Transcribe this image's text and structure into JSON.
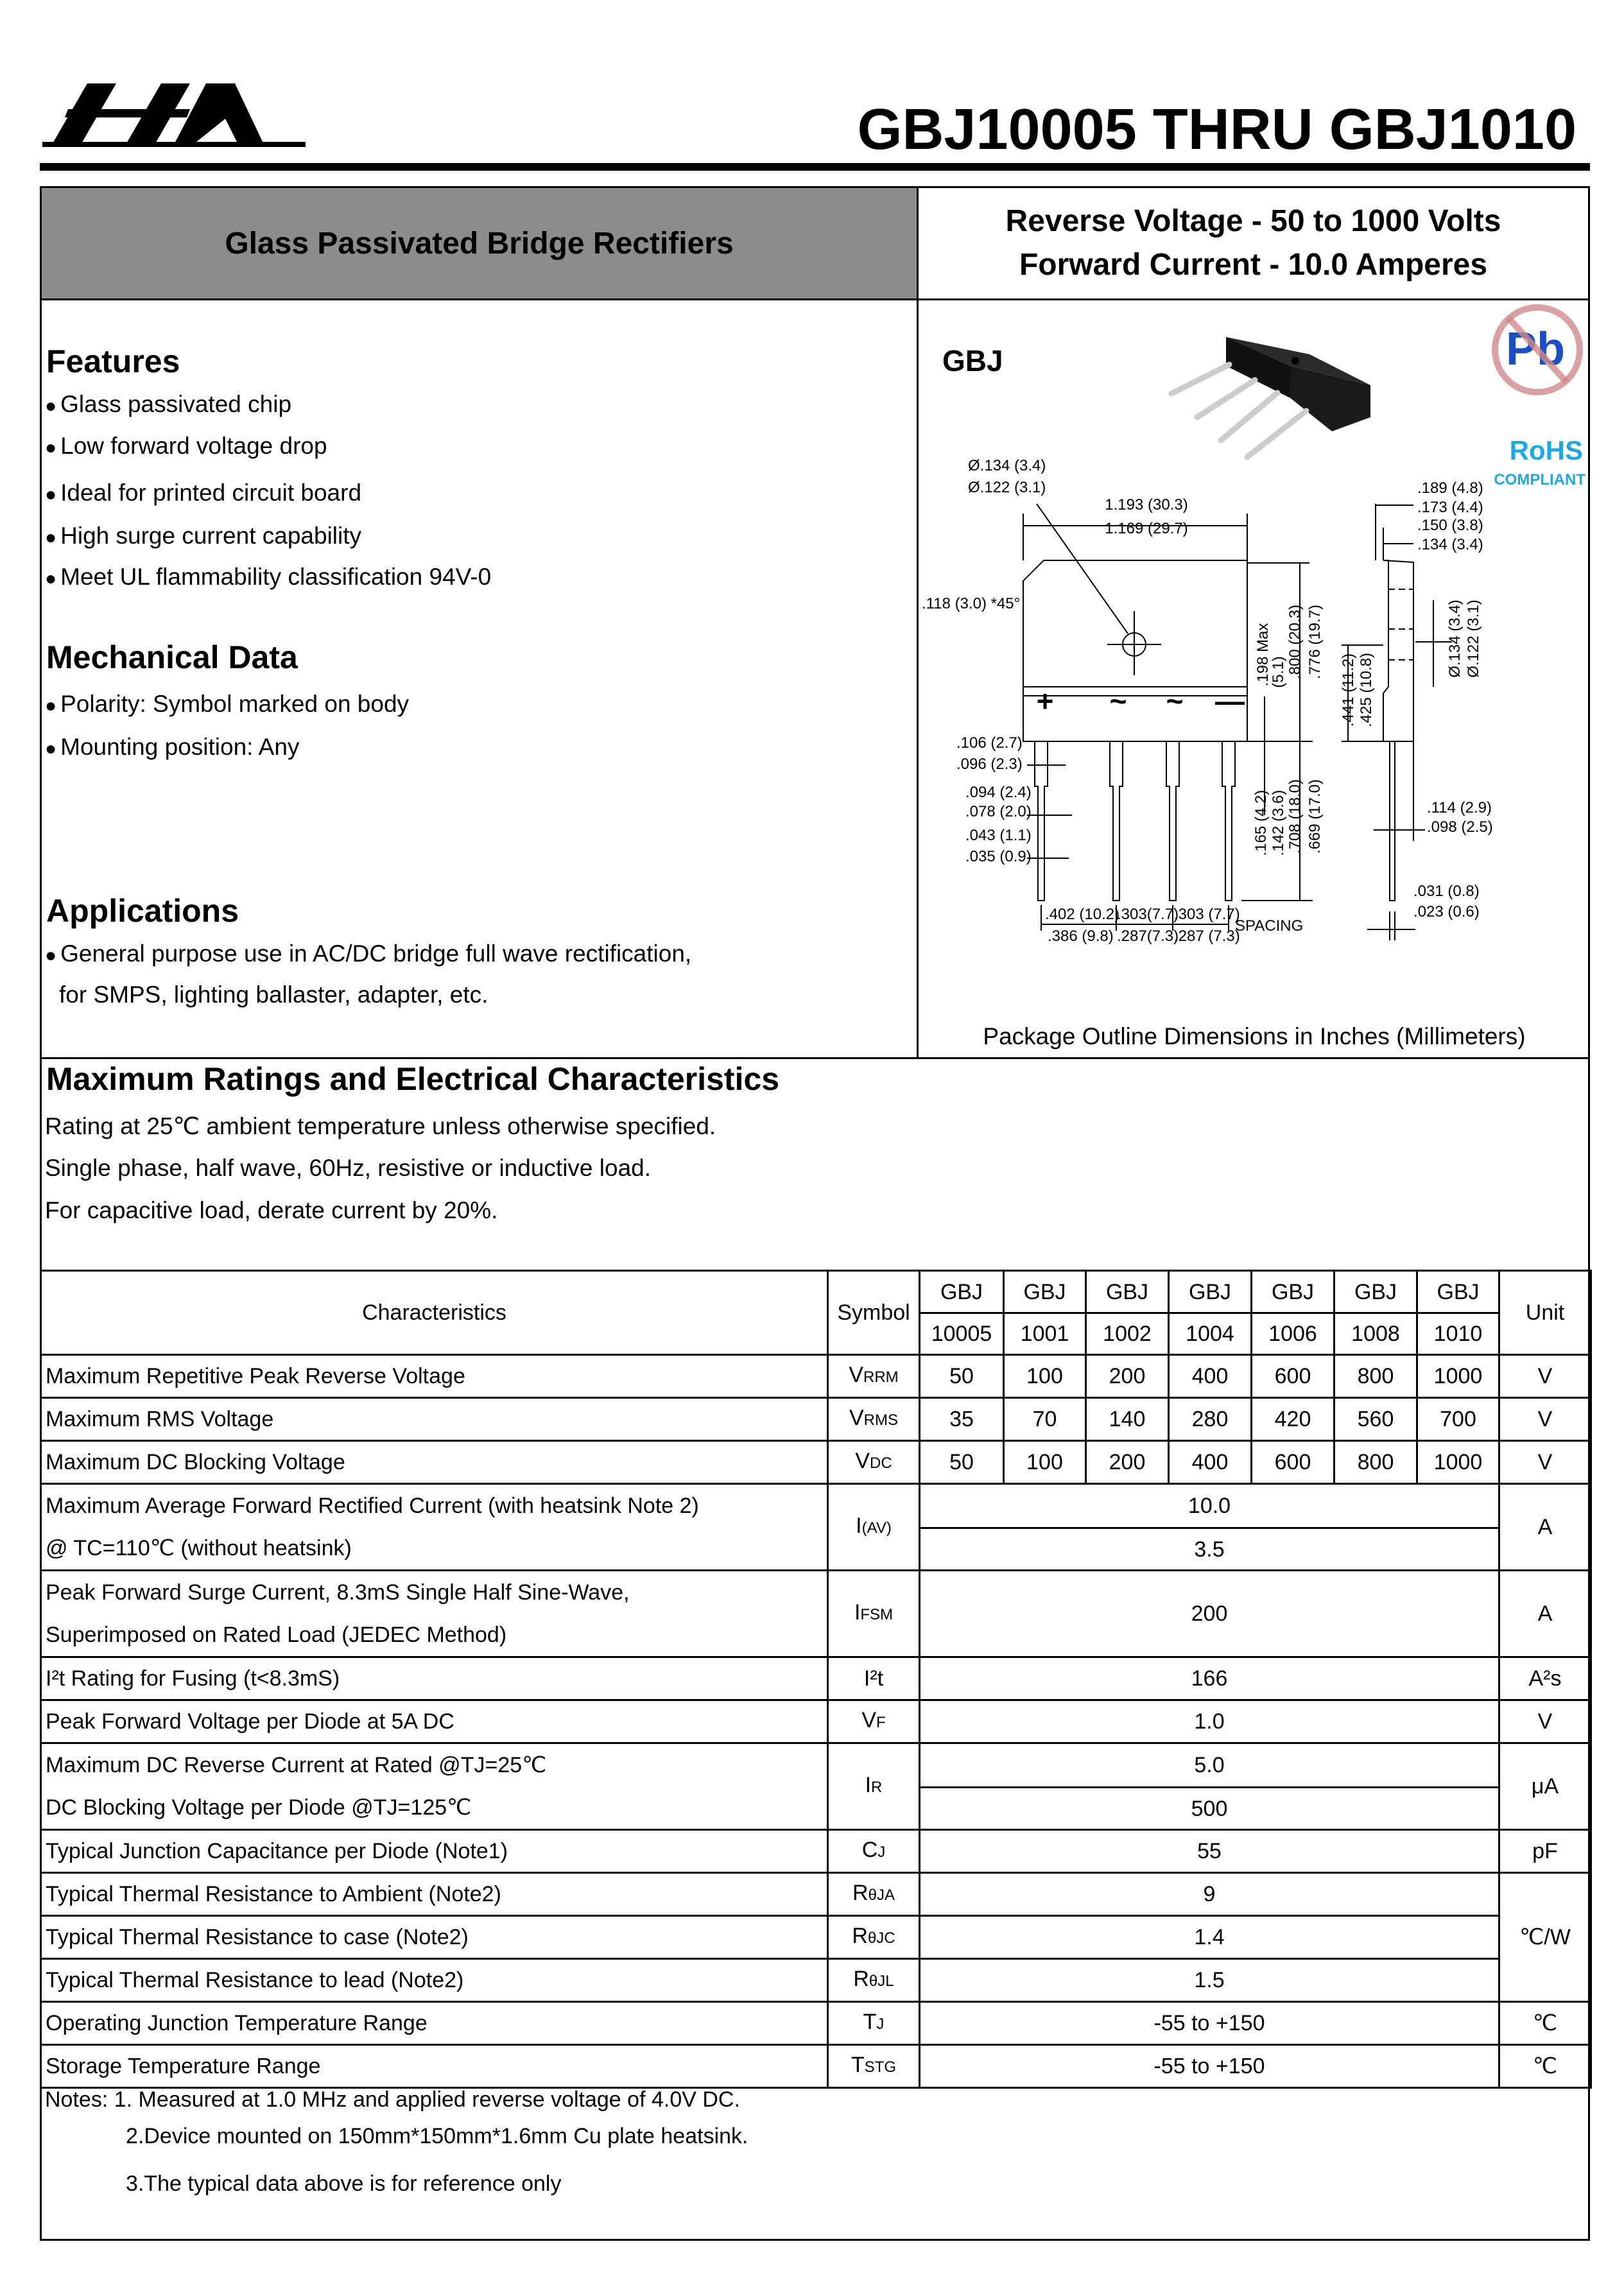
{
  "logo": {
    "text": "HA"
  },
  "header": {
    "title": "GBJ10005 THRU GBJ1010"
  },
  "banner": {
    "left": "Glass Passivated Bridge Rectifiers",
    "right": [
      "Reverse Voltage  -  50 to 1000 Volts",
      "Forward Current -  10.0 Amperes"
    ]
  },
  "features": {
    "heading": "Features",
    "items": [
      "Glass passivated chip",
      "Low forward voltage drop",
      "Ideal for printed circuit board",
      "High surge current capability",
      "Meet UL flammability classification 94V-0"
    ]
  },
  "mechanical": {
    "heading": "Mechanical Data",
    "items": [
      "Polarity: Symbol marked on body",
      "Mounting position: Any"
    ]
  },
  "applications": {
    "heading": "Applications",
    "items": [
      "General purpose use in AC/DC bridge full wave rectification,"
    ],
    "continuation": "for SMPS, lighting ballaster, adapter, etc."
  },
  "package": {
    "name": "GBJ",
    "rohs": "RoHS",
    "compliant": "COMPLIANT",
    "pb": "Pb",
    "caption": "Package Outline Dimensions in Inches (Millimeters)",
    "pin_marks": [
      "+",
      "~",
      "~",
      "—"
    ],
    "labels": [
      "Ø.134 (3.4)",
      "Ø.122 (3.1)",
      "1.193 (30.3)",
      "1.169 (29.7)",
      ".118 (3.0) *45°",
      ".198 Max",
      "(5.1)",
      ".800 (20.3)",
      ".776 (19.7)",
      ".189 (4.8)",
      ".173 (4.4)",
      ".150 (3.8)",
      ".134 (3.4)",
      "Ø.134 (3.4)",
      "Ø.122 (3.1)",
      ".441 (11.2)",
      ".425 (10.8)",
      ".106 (2.7)",
      ".096 (2.3)",
      ".094 (2.4)",
      ".078 (2.0)",
      ".043 (1.1)",
      ".035 (0.9)",
      ".165 (4.2)",
      ".142 (3.6)",
      ".708 (18.0)",
      ".669 (17.0)",
      ".114 (2.9)",
      ".098 (2.5)",
      ".031 (0.8)",
      ".023 (0.6)",
      ".402 (10.2)",
      ".386 (9.8)",
      ".303(7.7)",
      ".287(7.3)",
      ".303 (7.7)",
      ".287 (7.3)",
      "SPACING"
    ]
  },
  "ratings": {
    "heading": "Maximum Ratings and Electrical Characteristics",
    "lines": [
      "Rating at 25℃ ambient temperature unless otherwise specified.",
      "Single phase, half wave, 60Hz, resistive or inductive load.",
      "For capacitive load, derate current by 20%."
    ]
  },
  "table": {
    "head": {
      "characteristics": "Characteristics",
      "symbol": "Symbol",
      "unit": "Unit",
      "series": [
        "GBJ",
        "GBJ",
        "GBJ",
        "GBJ",
        "GBJ",
        "GBJ",
        "GBJ"
      ],
      "models": [
        "10005",
        "1001",
        "1002",
        "1004",
        "1006",
        "1008",
        "1010"
      ]
    },
    "rows": [
      {
        "char": [
          "Maximum Repetitive Peak Reverse Voltage"
        ],
        "sym": [
          "V",
          "RRM"
        ],
        "values": [
          "50",
          "100",
          "200",
          "400",
          "600",
          "800",
          "1000"
        ],
        "unit": "V"
      },
      {
        "char": [
          "Maximum RMS Voltage"
        ],
        "sym": [
          "V",
          "RMS"
        ],
        "values": [
          "35",
          "70",
          "140",
          "280",
          "420",
          "560",
          "700"
        ],
        "unit": "V"
      },
      {
        "char": [
          "Maximum DC Blocking Voltage"
        ],
        "sym": [
          "V",
          "DC"
        ],
        "values": [
          "50",
          "100",
          "200",
          "400",
          "600",
          "800",
          "1000"
        ],
        "unit": "V"
      },
      {
        "char": [
          "Maximum Average Forward Rectified Current   (with heatsink Note 2)",
          "@ TC=110℃ (without heatsink)"
        ],
        "sym": [
          "I",
          "(AV)"
        ],
        "split": [
          "10.0",
          "3.5"
        ],
        "unit": "A"
      },
      {
        "char": [
          "Peak Forward Surge Current, 8.3mS Single Half Sine-Wave,",
          "Superimposed on Rated Load (JEDEC Method)"
        ],
        "sym": [
          "I",
          "FSM"
        ],
        "value": "200",
        "unit": "A"
      },
      {
        "char": [
          "I²t Rating for Fusing (t<8.3mS)"
        ],
        "sym": [
          "I²t",
          ""
        ],
        "value": "166",
        "unit": "A²s"
      },
      {
        "char": [
          "Peak Forward Voltage per Diode at 5A DC"
        ],
        "sym": [
          "V",
          "F"
        ],
        "value": "1.0",
        "unit": "V"
      },
      {
        "char": [
          "Maximum DC Reverse Current at Rated @TJ=25℃",
          "DC Blocking Voltage per Diode @TJ=125℃"
        ],
        "sym": [
          "I",
          "R"
        ],
        "split": [
          "5.0",
          "500"
        ],
        "unit": "μA"
      },
      {
        "char": [
          "Typical Junction  Capacitance  per Diode (Note1)"
        ],
        "sym": [
          "C",
          "J"
        ],
        "value": "55",
        "unit": "pF"
      },
      {
        "char": [
          "Typical Thermal Resistance to  Ambient (Note2)"
        ],
        "sym": [
          "R",
          "θJA"
        ],
        "value": "9",
        "unit": "℃/W",
        "unitSpan": 3
      },
      {
        "char": [
          "Typical Thermal Resistance to case (Note2)"
        ],
        "sym": [
          "R",
          "θJC"
        ],
        "value": "1.4"
      },
      {
        "char": [
          "Typical Thermal Resistance to lead (Note2)"
        ],
        "sym": [
          "R",
          "θJL"
        ],
        "value": "1.5"
      },
      {
        "char": [
          "Operating Junction Temperature Range"
        ],
        "sym": [
          "T",
          "J"
        ],
        "value": "-55 to +150",
        "unit": "℃"
      },
      {
        "char": [
          "Storage Temperature Range"
        ],
        "sym": [
          "T",
          "STG"
        ],
        "value": "-55 to +150",
        "unit": "℃"
      }
    ]
  },
  "notes": [
    "Notes: 1. Measured at 1.0 MHz and applied reverse voltage of 4.0V DC.",
    "2.Device mounted on 150mm*150mm*1.6mm Cu plate heatsink.",
    "3.The typical data above is for reference only"
  ],
  "colors": {
    "banner": "#8c8c8c",
    "rohs": "#1ea7e0",
    "pb": "#1d4fc4",
    "no_sign": "#d08a8a"
  }
}
